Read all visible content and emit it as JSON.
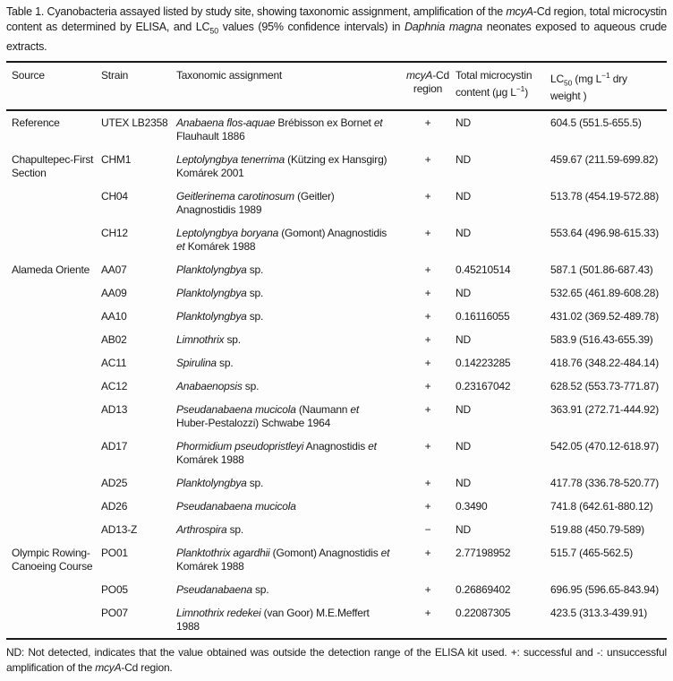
{
  "page": {
    "background": "#fdfdfd",
    "text_color": "#1a1a1a",
    "rule_color": "#1a1a1a"
  },
  "caption": "Table 1. Cyanobacteria assayed listed by study site, showing taxonomic assignment, amplification of the *mcyA*-Cd region, total microcystin content as determined by ELISA, and LC_50_ values (95% confidence intervals) in *Daphnia magna* neonates exposed to aqueous crude extracts.",
  "table": {
    "columns": [
      {
        "key": "source",
        "label": "Source"
      },
      {
        "key": "strain",
        "label": "Strain"
      },
      {
        "key": "taxon",
        "label": "Taxonomic assignment"
      },
      {
        "key": "mcya",
        "label": "*mcyA*-Cd region"
      },
      {
        "key": "microcystin",
        "label": "Total microcystin content (μg L^−1^)"
      },
      {
        "key": "lc50",
        "label": "LC_50_ (mg L^−1^ dry weight )"
      }
    ],
    "rows": [
      {
        "source": "Reference",
        "strain": "UTEX LB2358",
        "taxon": "*Anabaena flos-aquae* Brébisson ex Bornet *et* Flauhault 1886",
        "mcya": "+",
        "microcystin": "ND",
        "lc50": "604.5 (551.5-655.5)"
      },
      {
        "source": "Chapultepec-First Section",
        "strain": "CHM1",
        "taxon": "*Leptolyngbya tenerrima* (Kützing ex Hansgirg) Komárek 2001",
        "mcya": "+",
        "microcystin": "ND",
        "lc50": "459.67 (211.59-699.82)"
      },
      {
        "source": "",
        "strain": "CH04",
        "taxon": "*Geitlerinema carotinosum* (Geitler) Anagnostidis 1989",
        "mcya": "+",
        "microcystin": "ND",
        "lc50": "513.78 (454.19-572.88)"
      },
      {
        "source": "",
        "strain": "CH12",
        "taxon": "*Leptolyngbya boryana* (Gomont) Anagnostidis *et* Komárek 1988",
        "mcya": "+",
        "microcystin": "ND",
        "lc50": "553.64 (496.98-615.33)"
      },
      {
        "source": "Alameda Oriente",
        "strain": "AA07",
        "taxon": "*Planktolyngbya* sp.",
        "mcya": "+",
        "microcystin": "0.45210514",
        "lc50": "587.1 (501.86-687.43)"
      },
      {
        "source": "",
        "strain": "AA09",
        "taxon": "*Planktolyngbya* sp.",
        "mcya": "+",
        "microcystin": "ND",
        "lc50": "532.65 (461.89-608.28)"
      },
      {
        "source": "",
        "strain": "AA10",
        "taxon": "*Planktolyngbya* sp.",
        "mcya": "+",
        "microcystin": "0.16116055",
        "lc50": "431.02 (369.52-489.78)"
      },
      {
        "source": "",
        "strain": "AB02",
        "taxon": "*Limnothrix* sp.",
        "mcya": "+",
        "microcystin": "ND",
        "lc50": "583.9 (516.43-655.39)"
      },
      {
        "source": "",
        "strain": "AC11",
        "taxon": "*Spirulina* sp.",
        "mcya": "+",
        "microcystin": "0.14223285",
        "lc50": "418.76 (348.22-484.14)"
      },
      {
        "source": "",
        "strain": "AC12",
        "taxon": "*Anabaenopsis* sp.",
        "mcya": "+",
        "microcystin": "0.23167042",
        "lc50": "628.52 (553.73-771.87)"
      },
      {
        "source": "",
        "strain": "AD13",
        "taxon": "*Pseudanabaena mucicola* (Naumann *et* Huber-Pestalozzi) Schwabe 1964",
        "mcya": "+",
        "microcystin": "ND",
        "lc50": "363.91 (272.71-444.92)"
      },
      {
        "source": "",
        "strain": "AD17",
        "taxon": "*Phormidium pseudopristleyi* Anagnostidis *et* Komárek 1988",
        "mcya": "+",
        "microcystin": "ND",
        "lc50": "542.05 (470.12-618.97)"
      },
      {
        "source": "",
        "strain": "AD25",
        "taxon": "*Planktolyngbya* sp.",
        "mcya": "+",
        "microcystin": "ND",
        "lc50": "417.78 (336.78-520.77)"
      },
      {
        "source": "",
        "strain": "AD26",
        "taxon": "*Pseudanabaena mucicola*",
        "mcya": "+",
        "microcystin": "0.3490",
        "lc50": "741.8 (642.61-880.12)"
      },
      {
        "source": "",
        "strain": "AD13-Z",
        "taxon": "*Arthrospira* sp.",
        "mcya": "−",
        "microcystin": "ND",
        "lc50": "519.88 (450.79-589)"
      },
      {
        "source": "Olympic Rowing-Canoeing Course",
        "strain": "PO01",
        "taxon": "*Planktothrix agardhii* (Gomont) Anagnostidis *et* Komárek 1988",
        "mcya": "+",
        "microcystin": "2.77198952",
        "lc50": "515.7 (465-562.5)"
      },
      {
        "source": "",
        "strain": "PO05",
        "taxon": "*Pseudanabaena* sp.",
        "mcya": "+",
        "microcystin": "0.26869402",
        "lc50": "696.95 (596.65-843.94)"
      },
      {
        "source": "",
        "strain": "PO07",
        "taxon": "*Limnothrix redekei* (van Goor) M.E.Meffert 1988",
        "mcya": "+",
        "microcystin": "0.22087305",
        "lc50": "423.5 (313.3-439.91)"
      }
    ]
  },
  "footnote": "ND: Not detected, indicates that the value obtained was outside the detection range of the ELISA kit used. +: successful and -: unsuccessful amplification of the *mcyA*-Cd region."
}
